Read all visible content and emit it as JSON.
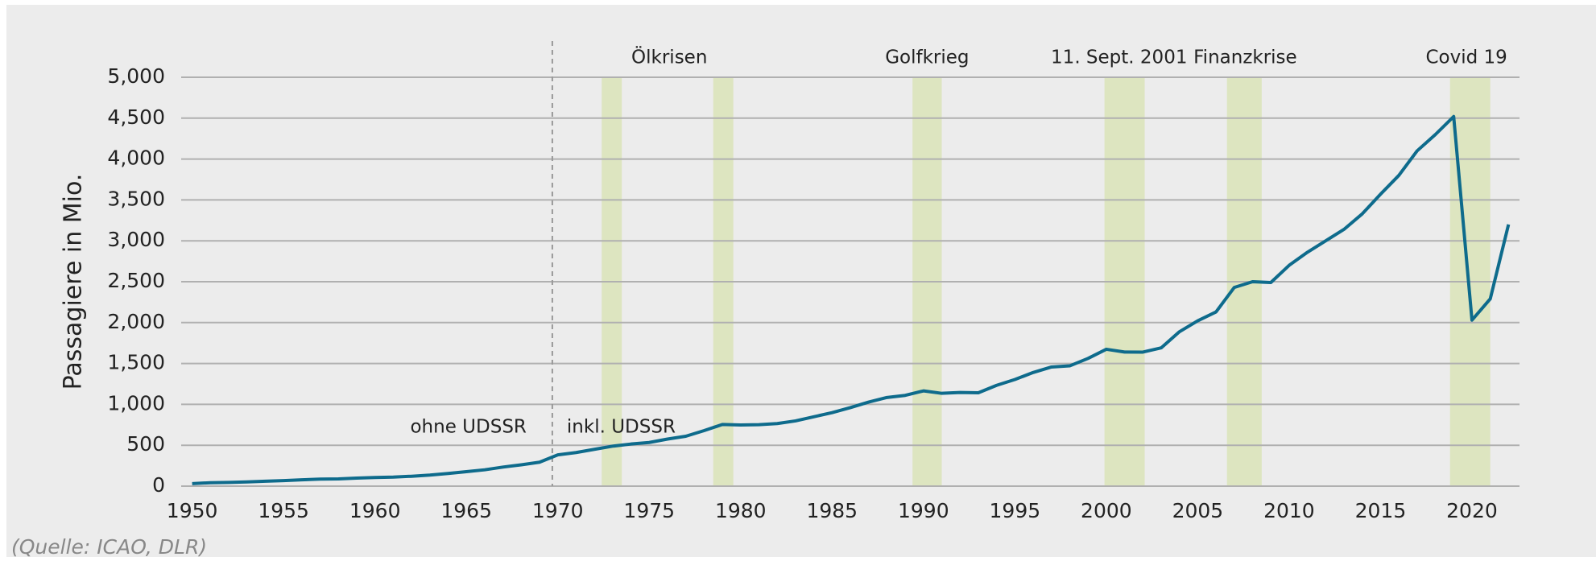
{
  "chart_data": {
    "type": "line",
    "y_label": "Passagiere in Mio.",
    "source": "(Quelle: ICAO, DLR)",
    "x": [
      1950,
      1951,
      1952,
      1953,
      1954,
      1955,
      1956,
      1957,
      1958,
      1959,
      1960,
      1961,
      1962,
      1963,
      1964,
      1965,
      1966,
      1967,
      1968,
      1969,
      1970,
      1971,
      1972,
      1973,
      1974,
      1975,
      1976,
      1977,
      1978,
      1979,
      1980,
      1981,
      1982,
      1983,
      1984,
      1985,
      1986,
      1987,
      1988,
      1989,
      1990,
      1991,
      1992,
      1993,
      1994,
      1995,
      1996,
      1997,
      1998,
      1999,
      2000,
      2001,
      2002,
      2003,
      2004,
      2005,
      2006,
      2007,
      2008,
      2009,
      2010,
      2011,
      2012,
      2013,
      2014,
      2015,
      2016,
      2017,
      2018,
      2019,
      2020,
      2021,
      2022
    ],
    "series": [
      {
        "color": "#0e6b8c",
        "values": [
          31,
          42,
          45,
          52,
          60,
          68,
          78,
          86,
          88,
          98,
          106,
          111,
          121,
          135,
          155,
          177,
          200,
          233,
          261,
          293,
          383,
          411,
          450,
          489,
          515,
          534,
          576,
          610,
          679,
          754,
          748,
          752,
          765,
          798,
          848,
          899,
          960,
          1028,
          1084,
          1110,
          1165,
          1135,
          1146,
          1142,
          1233,
          1304,
          1390,
          1457,
          1471,
          1562,
          1674,
          1640,
          1639,
          1691,
          1888,
          2022,
          2130,
          2430,
          2500,
          2490,
          2700,
          2860,
          3000,
          3140,
          3330,
          3570,
          3800,
          4100,
          4300,
          4520,
          2030,
          2290,
          3200
        ]
      }
    ],
    "xlim": [
      1949.4,
      2022.6
    ],
    "xticks": [
      1950,
      1955,
      1960,
      1965,
      1970,
      1975,
      1980,
      1985,
      1990,
      1995,
      2000,
      2005,
      2010,
      2015,
      2020
    ],
    "ylim": [
      0,
      5000
    ],
    "yticks": [
      0,
      500,
      {
        "value": 1000,
        "label": "1,000"
      },
      {
        "value": 1500,
        "label": "1,500"
      },
      {
        "value": 2000,
        "label": "2,000"
      },
      {
        "value": 2500,
        "label": "2,500"
      },
      {
        "value": 3000,
        "label": "3,000"
      },
      {
        "value": 3500,
        "label": "3,500"
      },
      {
        "value": 4000,
        "label": "4,000"
      },
      {
        "value": 4500,
        "label": "4,500"
      },
      {
        "value": 5000,
        "label": "5,000"
      }
    ],
    "grid": true,
    "band_color": "#dde5c0",
    "bands": [
      [
        1972.4,
        1973.5
      ],
      [
        1978.5,
        1979.6
      ],
      [
        1989.4,
        1991.0
      ],
      [
        1999.9,
        2002.1
      ],
      [
        2006.6,
        2008.5
      ],
      [
        2018.8,
        2021.0
      ]
    ],
    "annotations": [
      {
        "text": "Ölkrisen",
        "x": 1976.1
      },
      {
        "text": "Golfkrieg",
        "x": 1990.2
      },
      {
        "text": "11. Sept. 2001",
        "x": 2000.7
      },
      {
        "text": "Finanzkrise",
        "x": 2007.6
      },
      {
        "text": "Covid 19",
        "x": 2019.7
      }
    ],
    "divider": {
      "x": 1969.7,
      "left_label": "ohne UDSSR",
      "right_label": "inkl. UDSSR"
    }
  }
}
